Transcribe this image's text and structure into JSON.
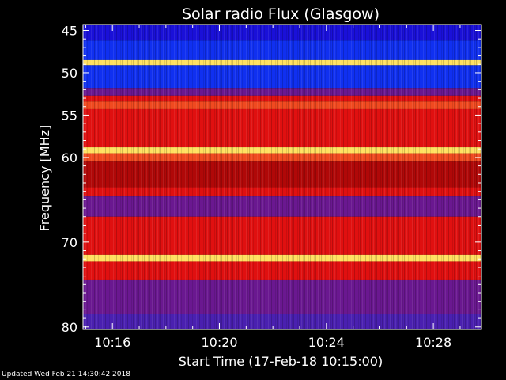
{
  "chart_data": {
    "type": "heatmap",
    "title": "Solar radio Flux (Glasgow)",
    "xlabel": "Start Time (17-Feb-18 10:15:00)",
    "ylabel": "Frequency [MHz]",
    "x_ticks": [
      "10:16",
      "10:20",
      "10:24",
      "10:28"
    ],
    "x_tick_minutes": [
      16,
      20,
      24,
      28
    ],
    "xlim_minutes": [
      14.9,
      29.8
    ],
    "y_ticks": [
      45,
      50,
      55,
      60,
      70,
      80
    ],
    "ylim": [
      44.3,
      80.3
    ],
    "y_direction": "increasing-downward",
    "bands": [
      {
        "from": 44.3,
        "to": 46.2,
        "level": "blue-dark"
      },
      {
        "from": 46.2,
        "to": 48.5,
        "level": "blue"
      },
      {
        "from": 48.5,
        "to": 49.1,
        "level": "yellow"
      },
      {
        "from": 49.1,
        "to": 51.8,
        "level": "blue"
      },
      {
        "from": 51.8,
        "to": 52.7,
        "level": "purple"
      },
      {
        "from": 52.7,
        "to": 53.4,
        "level": "red"
      },
      {
        "from": 53.4,
        "to": 54.3,
        "level": "red-light"
      },
      {
        "from": 54.3,
        "to": 58.8,
        "level": "red"
      },
      {
        "from": 58.8,
        "to": 59.5,
        "level": "yellow"
      },
      {
        "from": 59.5,
        "to": 60.5,
        "level": "red-light"
      },
      {
        "from": 60.5,
        "to": 63.5,
        "level": "red-dark"
      },
      {
        "from": 63.5,
        "to": 64.6,
        "level": "red"
      },
      {
        "from": 64.6,
        "to": 67.0,
        "level": "purple"
      },
      {
        "from": 67.0,
        "to": 71.5,
        "level": "red"
      },
      {
        "from": 71.5,
        "to": 72.3,
        "level": "yellow"
      },
      {
        "from": 72.3,
        "to": 74.5,
        "level": "red"
      },
      {
        "from": 74.5,
        "to": 78.5,
        "level": "purple"
      },
      {
        "from": 78.5,
        "to": 80.3,
        "level": "blue-purple"
      }
    ],
    "colors": {
      "blue-dark": "#1a10d8",
      "blue": "#1030f0",
      "purple": "#6a1890",
      "blue-purple": "#4a20b0",
      "red-dark": "#b00808",
      "red": "#e01010",
      "red-light": "#f04a20",
      "yellow": "#ffe060"
    }
  },
  "footer": "Updated Wed Feb 21 14:30:42 2018"
}
